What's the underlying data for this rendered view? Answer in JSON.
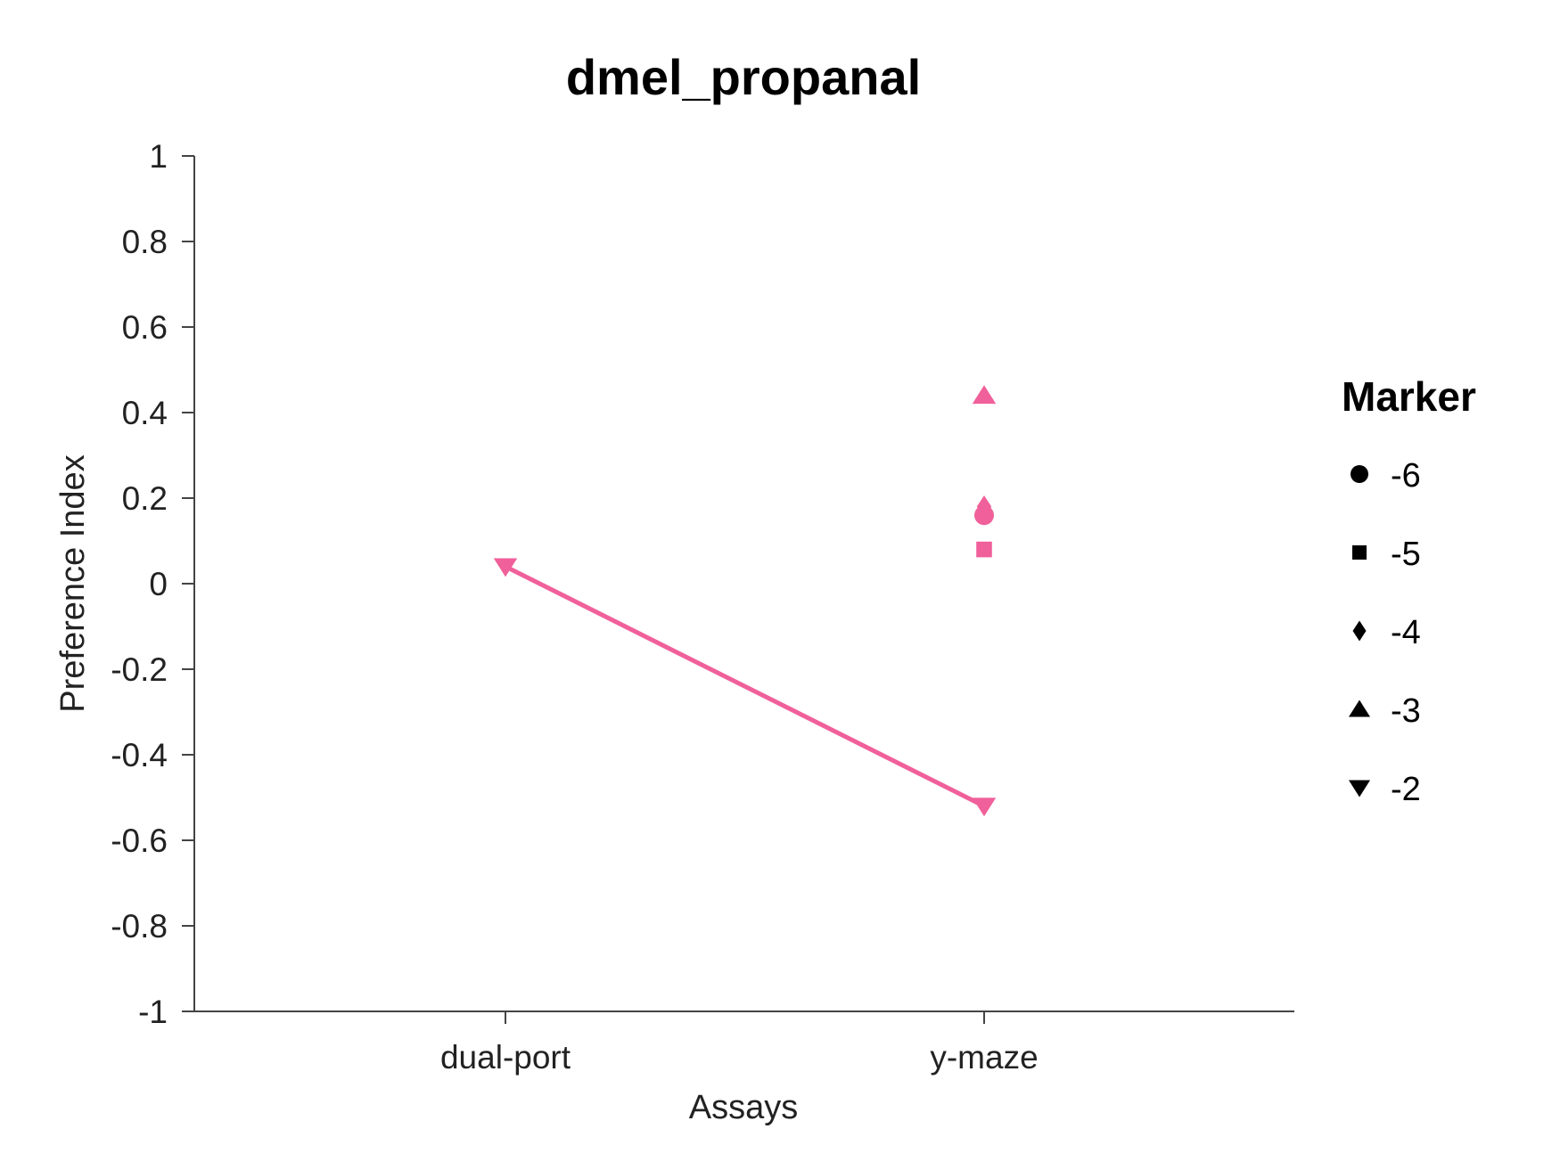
{
  "chart_data": {
    "type": "scatter",
    "title": "dmel_propanal",
    "xlabel": "Assays",
    "ylabel": "Preference Index",
    "categories": [
      "dual-port",
      "y-maze"
    ],
    "ylim": [
      -1,
      1
    ],
    "yticks": [
      1,
      0.8,
      0.6,
      0.4,
      0.2,
      0,
      -0.2,
      -0.4,
      -0.6,
      -0.8,
      -1
    ],
    "ytick_labels": [
      "1",
      "0.8",
      "0.6",
      "0.4",
      "0.2",
      "0",
      "-0.2",
      "-0.4",
      "-0.6",
      "-0.8",
      "-1"
    ],
    "color": "#f0609a",
    "points": [
      {
        "category": "dual-port",
        "y": 0.04,
        "marker": "-2"
      },
      {
        "category": "y-maze",
        "y": -0.52,
        "marker": "-2"
      },
      {
        "category": "y-maze",
        "y": 0.44,
        "marker": "-3"
      },
      {
        "category": "y-maze",
        "y": 0.18,
        "marker": "-4"
      },
      {
        "category": "y-maze",
        "y": 0.16,
        "marker": "-6"
      },
      {
        "category": "y-maze",
        "y": 0.08,
        "marker": "-5"
      }
    ],
    "lines": [
      {
        "marker": "-2",
        "from": {
          "category": "dual-port",
          "y": 0.04
        },
        "to": {
          "category": "y-maze",
          "y": -0.52
        }
      }
    ],
    "legend": {
      "title": "Marker",
      "position": "right",
      "items": [
        {
          "label": "-6",
          "shape": "circle"
        },
        {
          "label": "-5",
          "shape": "square"
        },
        {
          "label": "-4",
          "shape": "diamond"
        },
        {
          "label": "-3",
          "shape": "triangle-up"
        },
        {
          "label": "-2",
          "shape": "triangle-down"
        }
      ]
    }
  }
}
